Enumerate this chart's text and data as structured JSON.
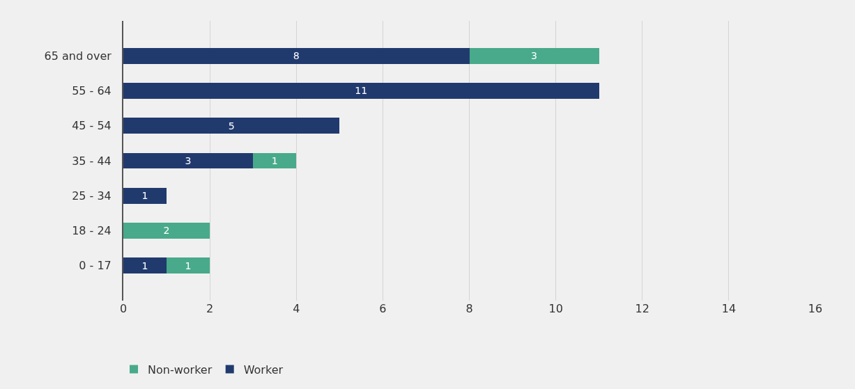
{
  "chart_data": {
    "type": "bar",
    "orientation": "horizontal",
    "stacked": true,
    "categories": [
      "65 and over",
      "55 - 64",
      "45 - 54",
      "35 - 44",
      "25 - 34",
      "18 - 24",
      "0 - 17"
    ],
    "series": [
      {
        "name": "Worker",
        "color": "#213a6e",
        "values": [
          8,
          11,
          5,
          3,
          1,
          null,
          1
        ]
      },
      {
        "name": "Non-worker",
        "color": "#48aa8a",
        "values": [
          3,
          null,
          null,
          1,
          null,
          2,
          1
        ]
      }
    ],
    "xlim": [
      0,
      16
    ],
    "xticks": [
      0,
      2,
      4,
      6,
      8,
      10,
      12,
      14,
      16
    ],
    "grid": "x",
    "legend": "bottom left",
    "data_labels": true
  }
}
